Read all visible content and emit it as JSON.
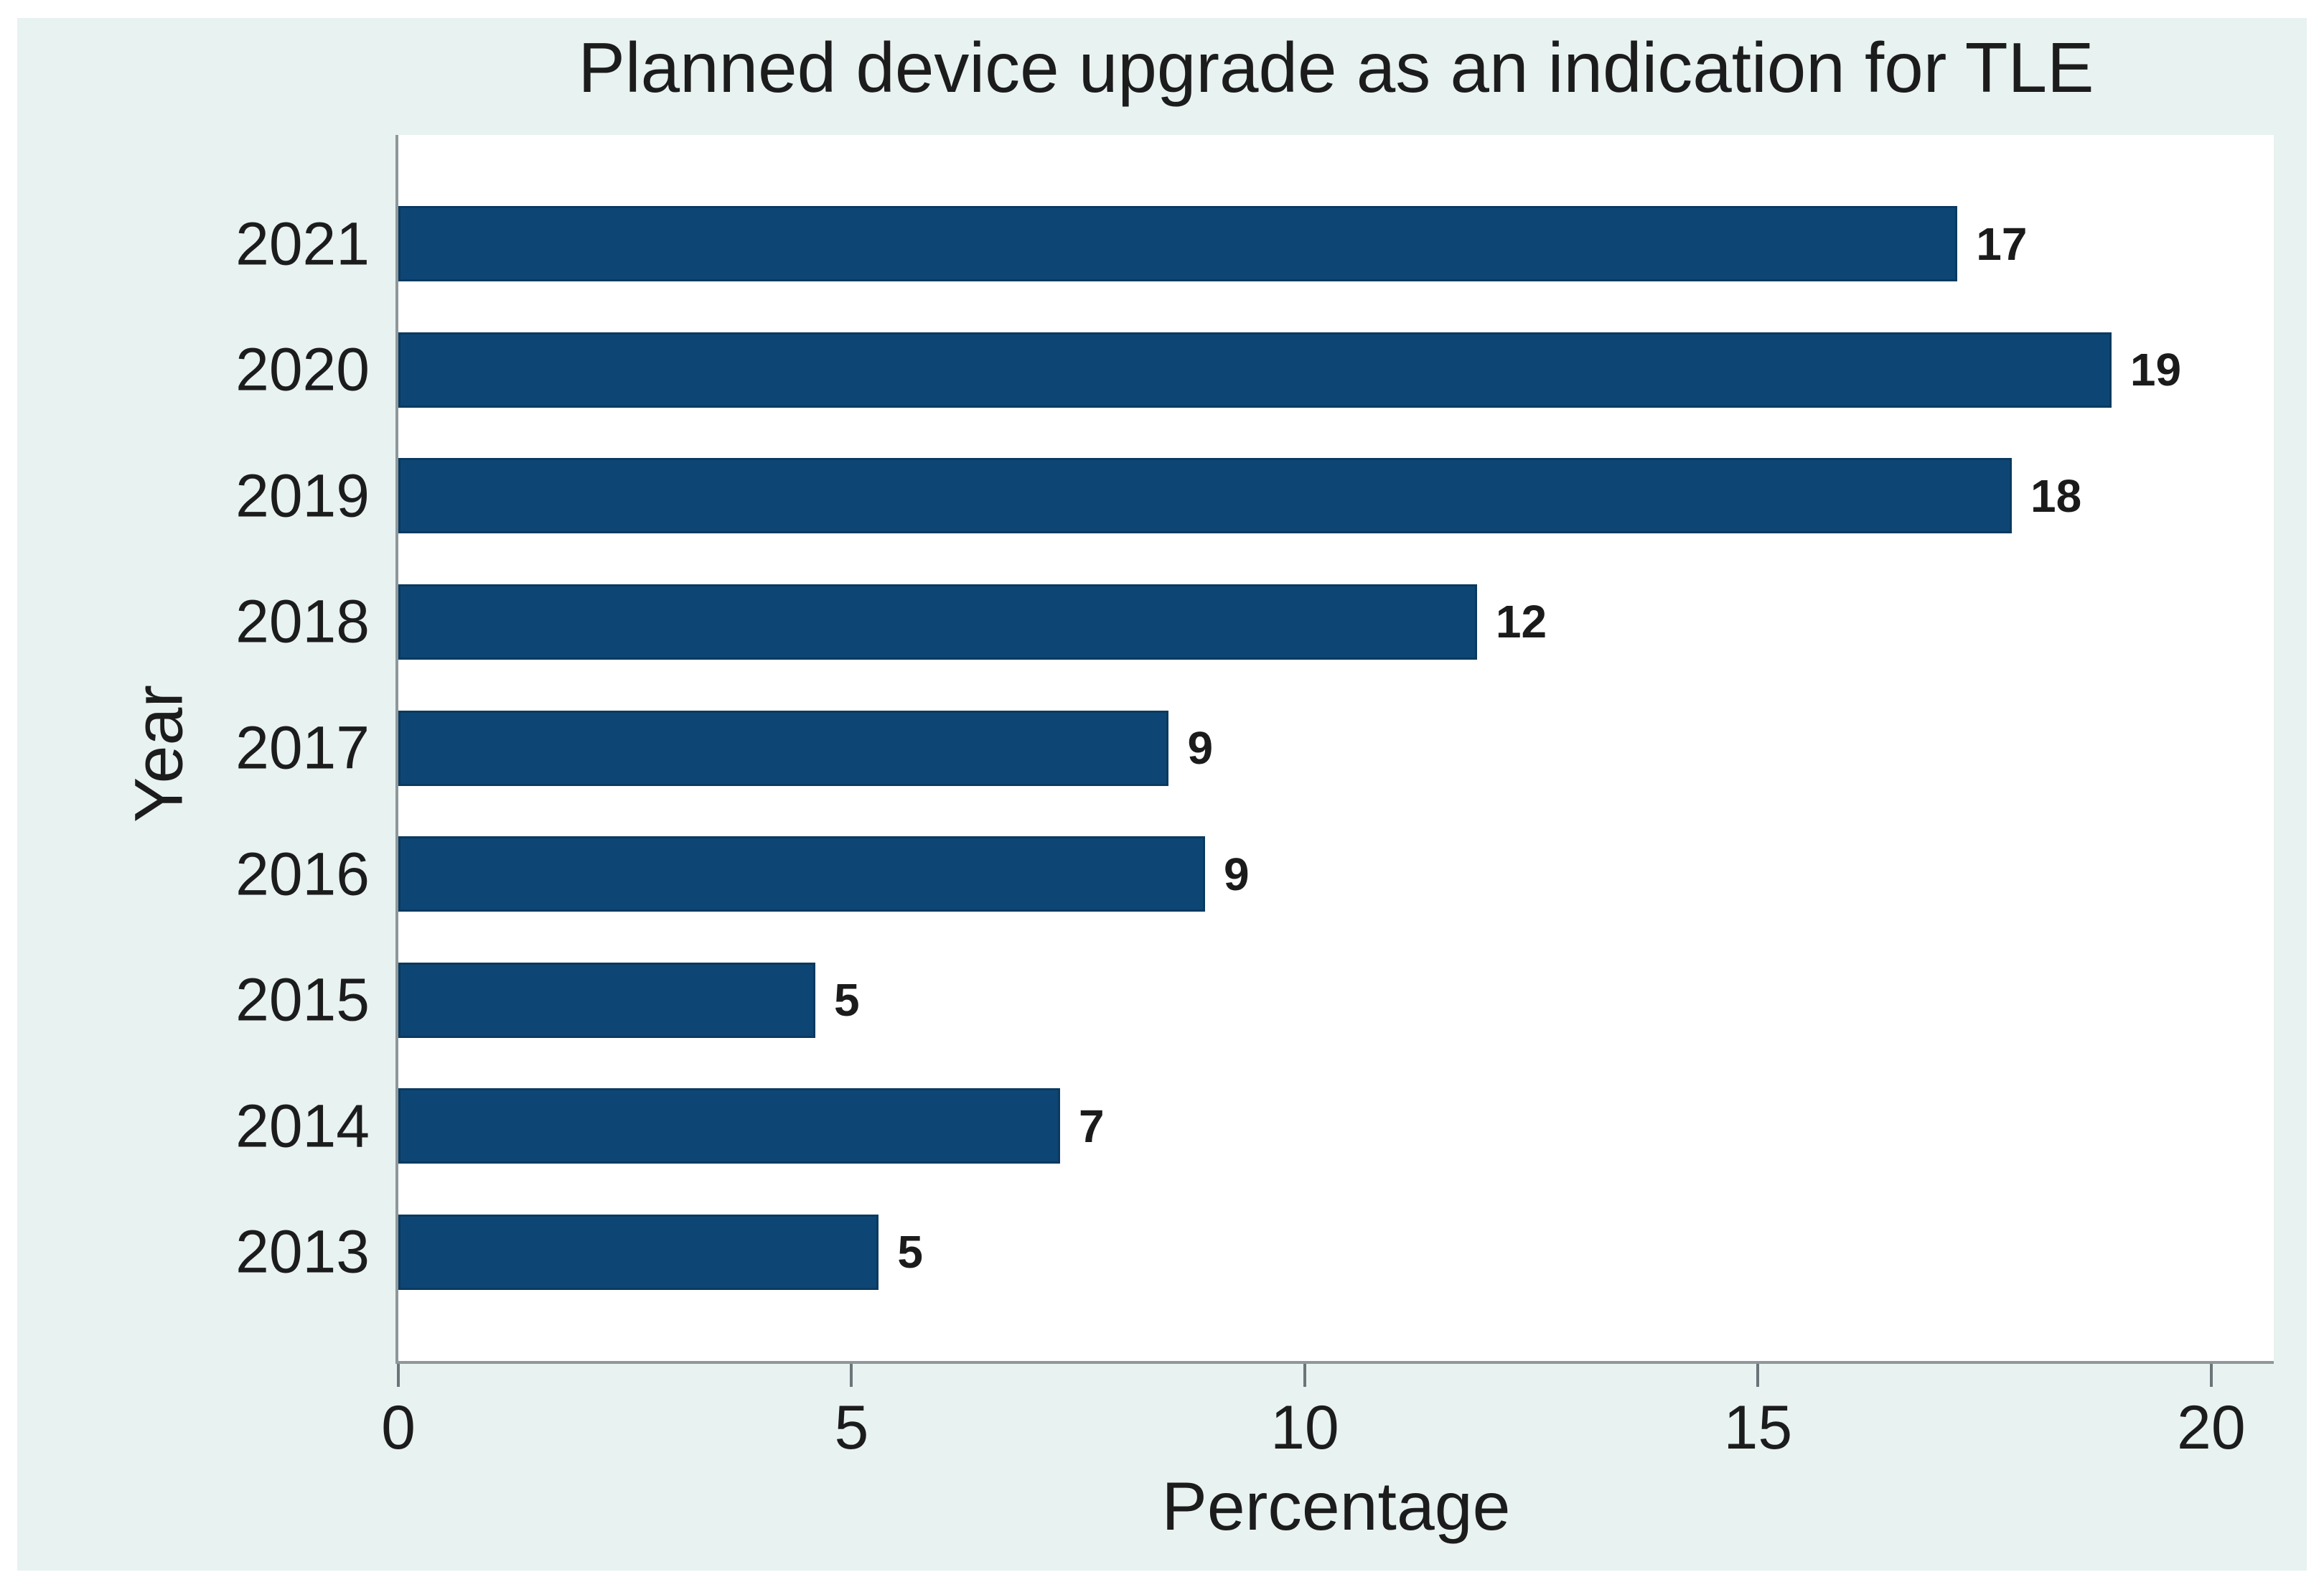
{
  "figure": {
    "background_color": "#e7f2f1",
    "plot_background_color": "#ffffff",
    "axis_line_color": "#8e989a",
    "text_color": "#1c1c1c"
  },
  "chart_data": {
    "type": "bar",
    "orientation": "horizontal",
    "title": "Planned device upgrade as an indication for TLE",
    "xlabel": "Percentage",
    "ylabel": "Year",
    "categories": [
      "2021",
      "2020",
      "2019",
      "2018",
      "2017",
      "2016",
      "2015",
      "2014",
      "2013"
    ],
    "values": [
      17,
      19,
      18,
      12,
      9,
      9,
      5,
      7,
      5
    ],
    "visual_bar_lengths": [
      17.2,
      18.9,
      17.8,
      11.9,
      8.5,
      8.9,
      4.6,
      7.3,
      5.3
    ],
    "value_labels_shown": true,
    "xlim": [
      0,
      20.69
    ],
    "xticks": [
      0,
      5,
      10,
      15,
      20
    ],
    "grid": "off",
    "legend": "none",
    "bar_color": "#0d4674",
    "bar_border_color": "#0a3a5f"
  }
}
